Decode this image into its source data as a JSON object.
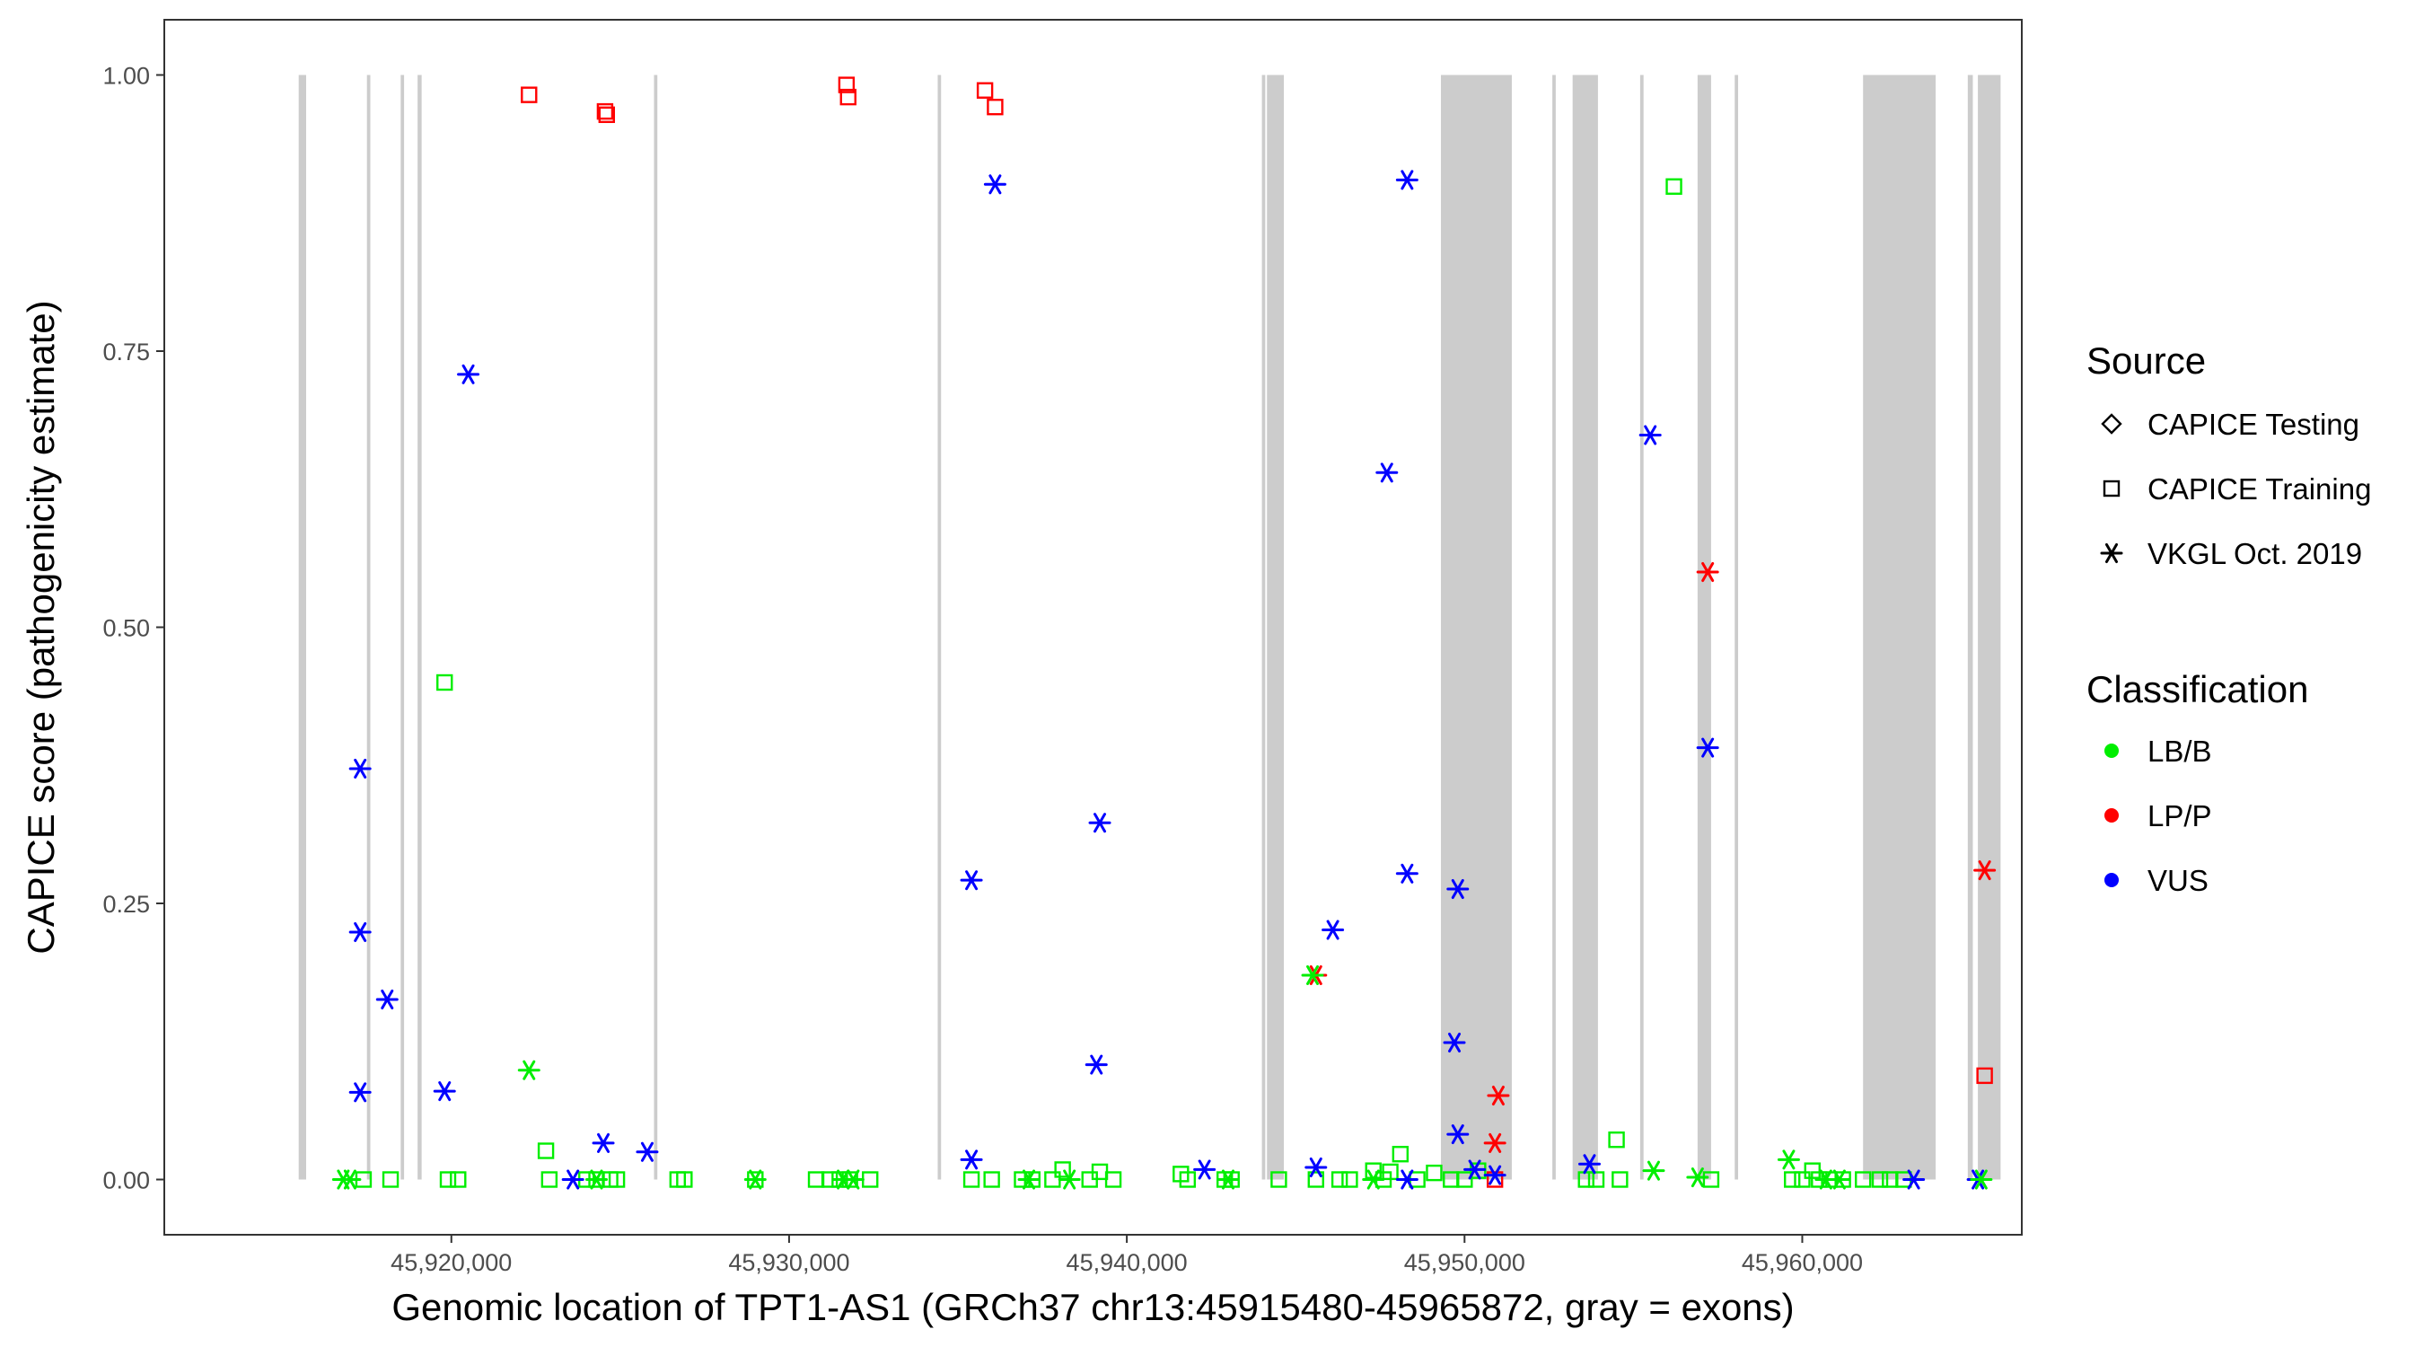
{
  "chart_data": {
    "type": "scatter",
    "xlabel": "Genomic location of TPT1-AS1 (GRCh37 chr13:45915480-45965872, gray = exons)",
    "ylabel": "CAPICE score (pathogenicity estimate)",
    "xlim": [
      45911500,
      45966500
    ],
    "ylim": [
      -0.05,
      1.05
    ],
    "x_ticks": [
      45920000,
      45930000,
      45940000,
      45950000,
      45960000
    ],
    "x_tick_labels": [
      "45,920,000",
      "45,930,000",
      "45,940,000",
      "45,950,000",
      "45,960,000"
    ],
    "y_ticks": [
      0,
      0.25,
      0.5,
      0.75,
      1.0
    ],
    "y_tick_labels": [
      "0.00",
      "0.25",
      "0.50",
      "0.75",
      "1.00"
    ],
    "grid": false,
    "exon_color": "#cccccc",
    "exons": [
      [
        45915480,
        45915700
      ],
      [
        45917500,
        45917600
      ],
      [
        45918500,
        45918600
      ],
      [
        45919000,
        45919120
      ],
      [
        45926000,
        45926100
      ],
      [
        45934400,
        45934500
      ],
      [
        45944000,
        45944100
      ],
      [
        45944150,
        45944650
      ],
      [
        45949300,
        45951400
      ],
      [
        45952600,
        45952700
      ],
      [
        45953200,
        45953950
      ],
      [
        45955200,
        45955300
      ],
      [
        45956900,
        45957300
      ],
      [
        45958000,
        45958100
      ],
      [
        45961800,
        45963950
      ],
      [
        45964900,
        45965050
      ],
      [
        45965200,
        45965872
      ]
    ],
    "legend": {
      "position": "right",
      "source": {
        "title": "Source",
        "entries": [
          {
            "label": "CAPICE Testing",
            "shape": "diamond"
          },
          {
            "label": "CAPICE Training",
            "shape": "square"
          },
          {
            "label": "VKGL Oct. 2019",
            "shape": "asterisk"
          }
        ]
      },
      "classification": {
        "title": "Classification",
        "entries": [
          {
            "label": "LB/B",
            "color": "#00ee00"
          },
          {
            "label": "LP/P",
            "color": "#ff0000"
          },
          {
            "label": "VUS",
            "color": "#0000ff"
          }
        ]
      }
    },
    "colors": {
      "LB/B": "#00ee00",
      "LP/P": "#ff0000",
      "VUS": "#0000ff"
    },
    "series": [
      {
        "source": "CAPICE Training",
        "classification": "LP/P",
        "points": [
          [
            45922300,
            0.982
          ],
          [
            45924550,
            0.967
          ],
          [
            45924600,
            0.964
          ],
          [
            45931700,
            0.991
          ],
          [
            45931750,
            0.98
          ],
          [
            45935800,
            0.986
          ],
          [
            45936100,
            0.971
          ],
          [
            45950900,
            0.0
          ],
          [
            45965400,
            0.094
          ]
        ]
      },
      {
        "source": "CAPICE Training",
        "classification": "LB/B",
        "points": [
          [
            45917400,
            0.0
          ],
          [
            45918200,
            0.0
          ],
          [
            45919800,
            0.45
          ],
          [
            45919900,
            0.0
          ],
          [
            45920200,
            0.0
          ],
          [
            45922800,
            0.026
          ],
          [
            45922900,
            0.0
          ],
          [
            45924000,
            0.0
          ],
          [
            45924300,
            0.0
          ],
          [
            45924700,
            0.0
          ],
          [
            45924900,
            0.0
          ],
          [
            45926700,
            0.0
          ],
          [
            45926900,
            0.0
          ],
          [
            45929000,
            0.0
          ],
          [
            45930800,
            0.0
          ],
          [
            45931200,
            0.0
          ],
          [
            45931500,
            0.0
          ],
          [
            45931800,
            0.0
          ],
          [
            45932400,
            0.0
          ],
          [
            45935400,
            0.0
          ],
          [
            45936000,
            0.0
          ],
          [
            45936900,
            0.0
          ],
          [
            45937200,
            0.0
          ],
          [
            45937800,
            0.0
          ],
          [
            45938100,
            0.009
          ],
          [
            45938900,
            0.0
          ],
          [
            45939200,
            0.007
          ],
          [
            45939600,
            0.0
          ],
          [
            45941600,
            0.005
          ],
          [
            45941800,
            0.0
          ],
          [
            45942900,
            0.0
          ],
          [
            45943100,
            0.0
          ],
          [
            45944500,
            0.0
          ],
          [
            45945600,
            0.0
          ],
          [
            45946300,
            0.0
          ],
          [
            45946600,
            0.0
          ],
          [
            45947300,
            0.008
          ],
          [
            45947600,
            0.0
          ],
          [
            45947800,
            0.007
          ],
          [
            45948100,
            0.023
          ],
          [
            45948600,
            0.0
          ],
          [
            45949100,
            0.006
          ],
          [
            45949600,
            0.0
          ],
          [
            45950000,
            0.0
          ],
          [
            45950400,
            0.008
          ],
          [
            45953600,
            0.0
          ],
          [
            45953900,
            0.0
          ],
          [
            45954500,
            0.036
          ],
          [
            45954600,
            0.0
          ],
          [
            45956200,
            0.899
          ],
          [
            45957300,
            0.0
          ],
          [
            45959700,
            0.0
          ],
          [
            45960000,
            0.0
          ],
          [
            45960300,
            0.008
          ],
          [
            45960500,
            0.0
          ],
          [
            45960800,
            0.0
          ],
          [
            45961200,
            0.0
          ],
          [
            45961800,
            0.0
          ],
          [
            45962300,
            0.0
          ],
          [
            45962600,
            0.0
          ],
          [
            45963000,
            0.0
          ]
        ]
      },
      {
        "source": "VKGL Oct. 2019",
        "classification": "VUS",
        "points": [
          [
            45917300,
            0.372
          ],
          [
            45917300,
            0.224
          ],
          [
            45917300,
            0.079
          ],
          [
            45918100,
            0.163
          ],
          [
            45919800,
            0.08
          ],
          [
            45920500,
            0.729
          ],
          [
            45923600,
            0.0
          ],
          [
            45924500,
            0.033
          ],
          [
            45925800,
            0.025
          ],
          [
            45935400,
            0.271
          ],
          [
            45935400,
            0.018
          ],
          [
            45936100,
            0.901
          ],
          [
            45939200,
            0.323
          ],
          [
            45939100,
            0.104
          ],
          [
            45942300,
            0.009
          ],
          [
            45945600,
            0.011
          ],
          [
            45946100,
            0.226
          ],
          [
            45947700,
            0.64
          ],
          [
            45948300,
            0.905
          ],
          [
            45948300,
            0.277
          ],
          [
            45948300,
            0.0
          ],
          [
            45949800,
            0.263
          ],
          [
            45949700,
            0.124
          ],
          [
            45949800,
            0.041
          ],
          [
            45950300,
            0.009
          ],
          [
            45950900,
            0.004
          ],
          [
            45953700,
            0.014
          ],
          [
            45955500,
            0.674
          ],
          [
            45957200,
            0.391
          ],
          [
            45963300,
            0.0
          ],
          [
            45965200,
            0.0
          ]
        ]
      },
      {
        "source": "VKGL Oct. 2019",
        "classification": "LP/P",
        "points": [
          [
            45945600,
            0.185
          ],
          [
            45951000,
            0.076
          ],
          [
            45950900,
            0.033
          ],
          [
            45957200,
            0.55
          ],
          [
            45965400,
            0.28
          ]
        ]
      },
      {
        "source": "VKGL Oct. 2019",
        "classification": "LB/B",
        "points": [
          [
            45916800,
            0.0
          ],
          [
            45917000,
            0.0
          ],
          [
            45922300,
            0.099
          ],
          [
            45924300,
            0.0
          ],
          [
            45929000,
            0.0
          ],
          [
            45931600,
            0.0
          ],
          [
            45931900,
            0.0
          ],
          [
            45937100,
            0.0
          ],
          [
            45938300,
            0.0
          ],
          [
            45943000,
            0.0
          ],
          [
            45945500,
            0.185
          ],
          [
            45947300,
            0.0
          ],
          [
            45955600,
            0.008
          ],
          [
            45956900,
            0.002
          ],
          [
            45959600,
            0.018
          ],
          [
            45960700,
            0.0
          ],
          [
            45961100,
            0.0
          ],
          [
            45965300,
            0.0
          ]
        ]
      }
    ]
  }
}
